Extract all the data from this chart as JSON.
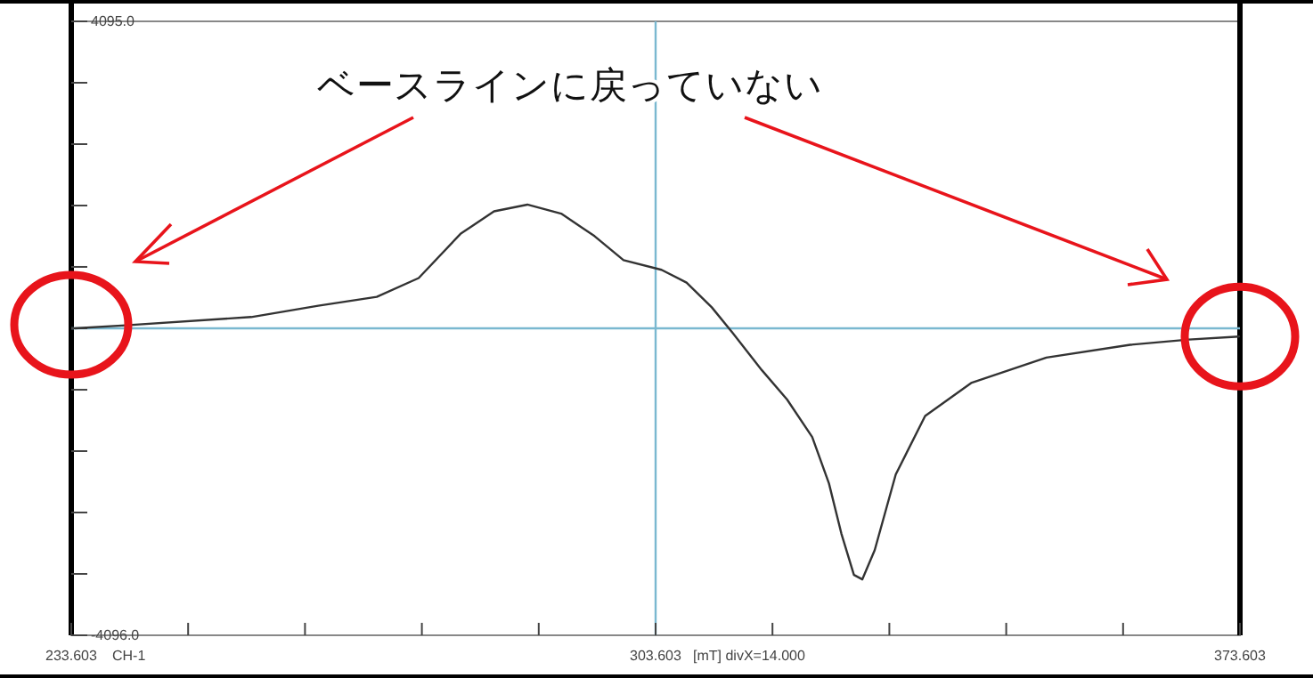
{
  "chart_data": {
    "type": "line",
    "xlabel": "[mT] divX=14.000",
    "annotations": [
      "ベースラインに戻っていない",
      "CH-1"
    ],
    "x": [
      234.03,
      240.11,
      255.16,
      263.18,
      270.2,
      275.22,
      280.23,
      284.25,
      288.24,
      292.29,
      296.28,
      299.76,
      304.31,
      307.31,
      310.33,
      312.82,
      316.34,
      319.35,
      322.36,
      324.37,
      325.86,
      327.36,
      328.36,
      329.85,
      332.37,
      335.89,
      341.4,
      350.42,
      360.45,
      367.47,
      373.49
    ],
    "series": [
      {
        "color": "#333333",
        "values": [
          0,
          40,
          150,
          300,
          420,
          670,
          1260,
          1560,
          1650,
          1530,
          1230,
          910,
          780,
          610,
          280,
          -60,
          -560,
          -950,
          -1450,
          -2070,
          -2740,
          -3290,
          -3350,
          -2960,
          -1950,
          -1170,
          -730,
          -390,
          -220,
          -150,
          -110
        ]
      }
    ],
    "xlim": [
      233.603,
      373.603
    ],
    "ylim": [
      -4096.0,
      4095.0
    ],
    "xticks": [
      {
        "value": 233.603,
        "label": "233.603"
      },
      {
        "value": 247.603,
        "label": null
      },
      {
        "value": 261.603,
        "label": null
      },
      {
        "value": 275.603,
        "label": null
      },
      {
        "value": 289.603,
        "label": null
      },
      {
        "value": 303.603,
        "label": "303.603"
      },
      {
        "value": 317.603,
        "label": null
      },
      {
        "value": 331.603,
        "label": null
      },
      {
        "value": 345.603,
        "label": null
      },
      {
        "value": 359.603,
        "label": null
      },
      {
        "value": 373.603,
        "label": "373.603"
      }
    ],
    "yticks": [
      {
        "value": -4096.0,
        "label": "-4096.0"
      },
      {
        "value": -3277,
        "label": null
      },
      {
        "value": -2458,
        "label": null
      },
      {
        "value": -1639,
        "label": null
      },
      {
        "value": -820,
        "label": null
      },
      {
        "value": 0,
        "label": null
      },
      {
        "value": 819,
        "label": null
      },
      {
        "value": 1638,
        "label": null
      },
      {
        "value": 2457,
        "label": null
      },
      {
        "value": 3276,
        "label": null
      },
      {
        "value": 4095.0,
        "label": "4095.0"
      }
    ],
    "ref_lines": [
      {
        "axis": "x",
        "value": 303.603,
        "color": "#7ab8d0"
      },
      {
        "axis": "y",
        "value": 0,
        "color": "#7ab8d0"
      }
    ],
    "grid": false,
    "marker": "none",
    "line_style": "solid"
  }
}
